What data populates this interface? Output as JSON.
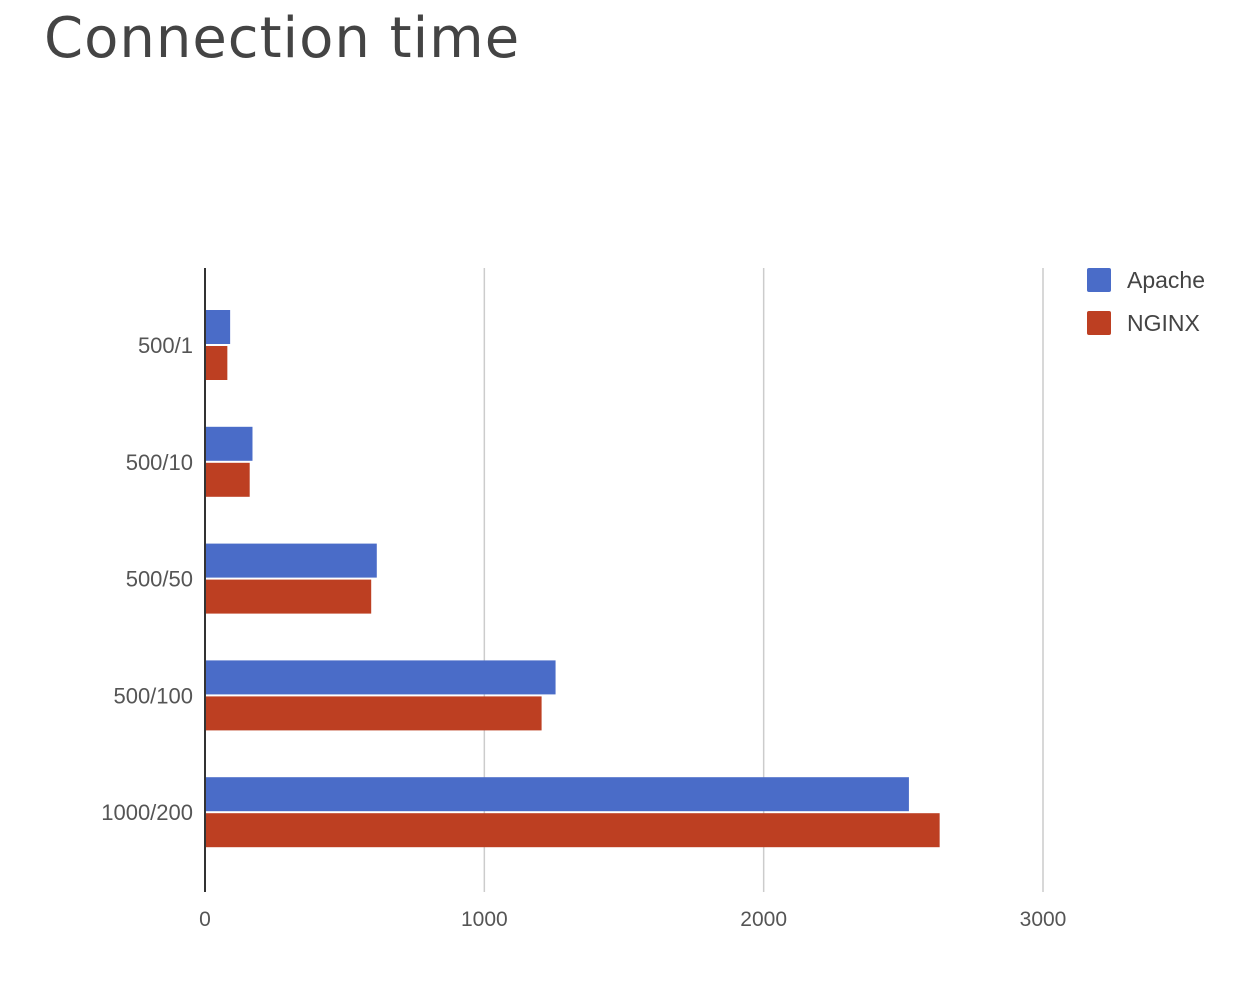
{
  "page": {
    "title": "Connection time"
  },
  "chart_data": {
    "type": "bar",
    "orientation": "horizontal",
    "title": "Connection time",
    "xlabel": "",
    "ylabel": "",
    "categories": [
      "500/1",
      "500/10",
      "500/50",
      "500/100",
      "1000/200"
    ],
    "series": [
      {
        "name": "Apache",
        "color": "#4a6cc8",
        "values": [
          90,
          170,
          615,
          1255,
          2520
        ]
      },
      {
        "name": "NGINX",
        "color": "#bd3f22",
        "values": [
          80,
          160,
          595,
          1205,
          2630
        ]
      }
    ],
    "xlim": [
      0,
      3000
    ],
    "xticks": [
      0,
      1000,
      2000,
      3000
    ],
    "grid": true,
    "legend": "top-right"
  }
}
